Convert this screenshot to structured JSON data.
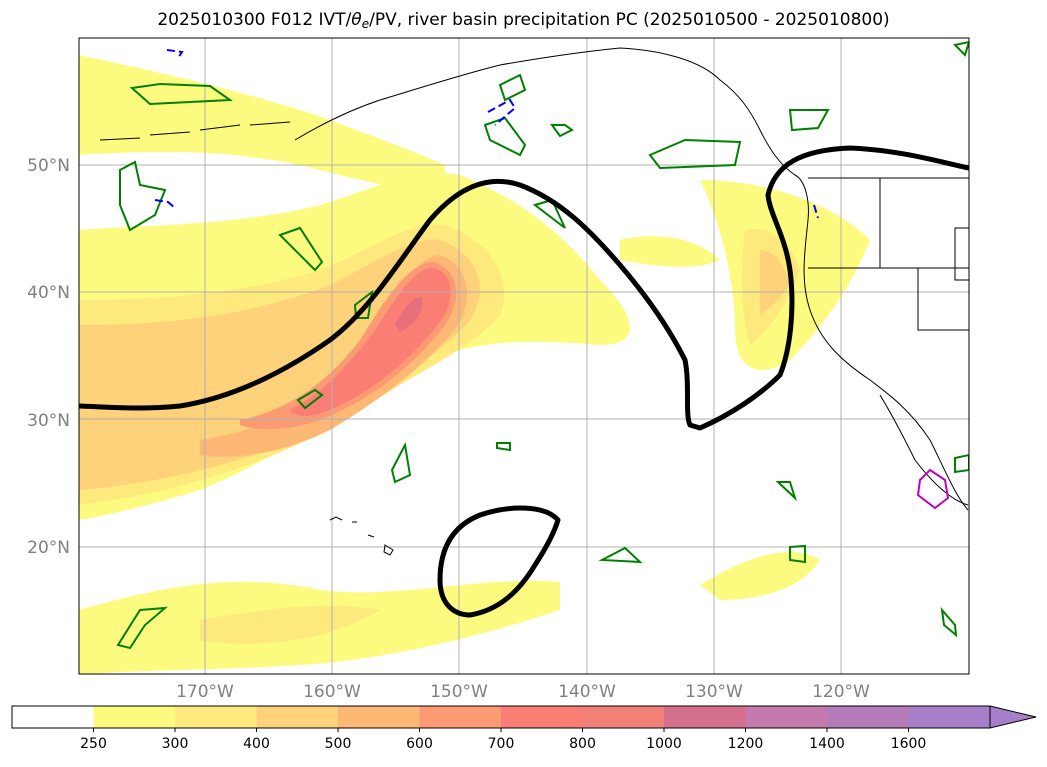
{
  "title": {
    "prefix": "2025010300 F012 IVT/",
    "theta": "θ",
    "theta_sub": "e",
    "suffix": "/PV, river basin precipitation PC (2025010500 - 2025010800)"
  },
  "map": {
    "lat_labels": [
      "50°N",
      "40°N",
      "30°N",
      "20°N"
    ],
    "lon_labels": [
      "170°W",
      "160°W",
      "150°W",
      "140°W",
      "130°W",
      "120°W"
    ],
    "colors": {
      "ivt_250": "#fdfb7f",
      "ivt_300": "#fde97c",
      "ivt_400": "#fdd27a",
      "ivt_500": "#fdb876",
      "ivt_600": "#fc9a73",
      "ivt_700": "#fa7e73",
      "ivt_800": "#e8707c",
      "pv_contour": "#000000",
      "theta_contour": "#008000",
      "neg_contour": "#0000ff",
      "magenta_contour": "#c000c0",
      "coast": "#000000",
      "grid": "#b0b0b0"
    }
  },
  "colorbar": {
    "ticks": [
      "250",
      "300",
      "400",
      "500",
      "600",
      "700",
      "800",
      "1000",
      "1200",
      "1400",
      "1600"
    ],
    "colors": [
      "#ffffff",
      "#fdfb7f",
      "#fde97c",
      "#fdd27a",
      "#fdb876",
      "#fc9a73",
      "#fa7e73",
      "#f08078",
      "#d4708c",
      "#c47aac",
      "#b67cba",
      "#a67fc8"
    ]
  }
}
